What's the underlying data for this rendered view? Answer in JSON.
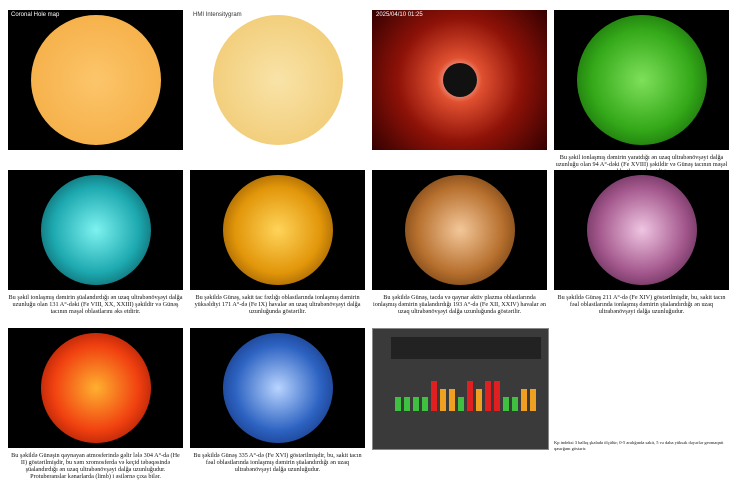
{
  "panels": [
    {
      "label": "Coronal Hole map",
      "caption": null
    },
    {
      "label": "HMI Intensitygram",
      "caption": null
    },
    {
      "label": "2025/04/10 01:25",
      "caption": null
    },
    {
      "label": null,
      "caption": "Bu şəkil ionlaşmış dəmirin yaratdığı ən uzaq ultrabənövşəyi dalğa uzunluğu olan 94 A°-dəki (Fe XVIII) şəkildir və Günəş tacının məşəl oblastlarını əks etdirir."
    },
    {
      "label": null,
      "caption": "Bu şəkil ionlaşmış dəmirin şüalandırdığı ən uzaq ultrabənövşəyi dalğa uzunluğu olan 131 A°-dəki (Fe VIII, XX, XXIII) şəkildir və Günəş tacının məşəl oblastlarını əks etdirir."
    },
    {
      "label": null,
      "caption": "Bu şəkildə Günəş, sakit tac fəzlığı oblastlarında ionlaşmış dəmirin yüksəldiyi 171 A°-də (Fe IX) havalar ən uzaq ultrabənövşəyi dalğa uzunluğunda göstərilir."
    },
    {
      "label": null,
      "caption": "Bu şəkildə Günəş, tacda və qaynar aktiv plazma oblastlarında ionlaşmış dəmirin şüalandırdığı 193 A°-də (Fe XII, XXIV) havalar ən uzaq ultrabənövşəyi dalğa uzunluğunda göstərilir."
    },
    {
      "label": null,
      "caption": "Bu şəkildə Günəş 211 A°-də (Fe XIV) göstərilmişdir, bu, sakit tacın fəal oblastlarında ionlaşmış dəmirin şüalandırdığı ən uzaq ultrabənövşəyi dalğa uzunluğudur."
    },
    {
      "label": null,
      "caption": "Bu şəkildə Günəşin qaynayan atmosferində gəlir lələ 304 A°-da (He II) göstərilmişdir, bu xəm xromosferda və keçid təbəqəsində şüalandırdığı ən uzaq ultrabənövşəyi dalğa uzunluğudur. Protuberanslar kənarlarda (limb) i əsilərnə çıxa bilər."
    },
    {
      "label": null,
      "caption": "Bu şəkildə Günəş 335 A°-də (Fe XVI) göstərilmişdir, bu, sakit tacın fəal oblastlarında ionlaşmış dəmirin şüalandırdığı ən uzaq ultrabənövşəyi dalğa uzunluğudur."
    },
    {
      "label": null,
      "caption": null
    },
    {
      "label": null,
      "caption": "Kp indeksi 3 ballıq şkalada ölçülür; 0-5 aralığında sakit, 5 və daha yüksək dəyərlər geomaqnit qasırğanı göstərir."
    }
  ]
}
